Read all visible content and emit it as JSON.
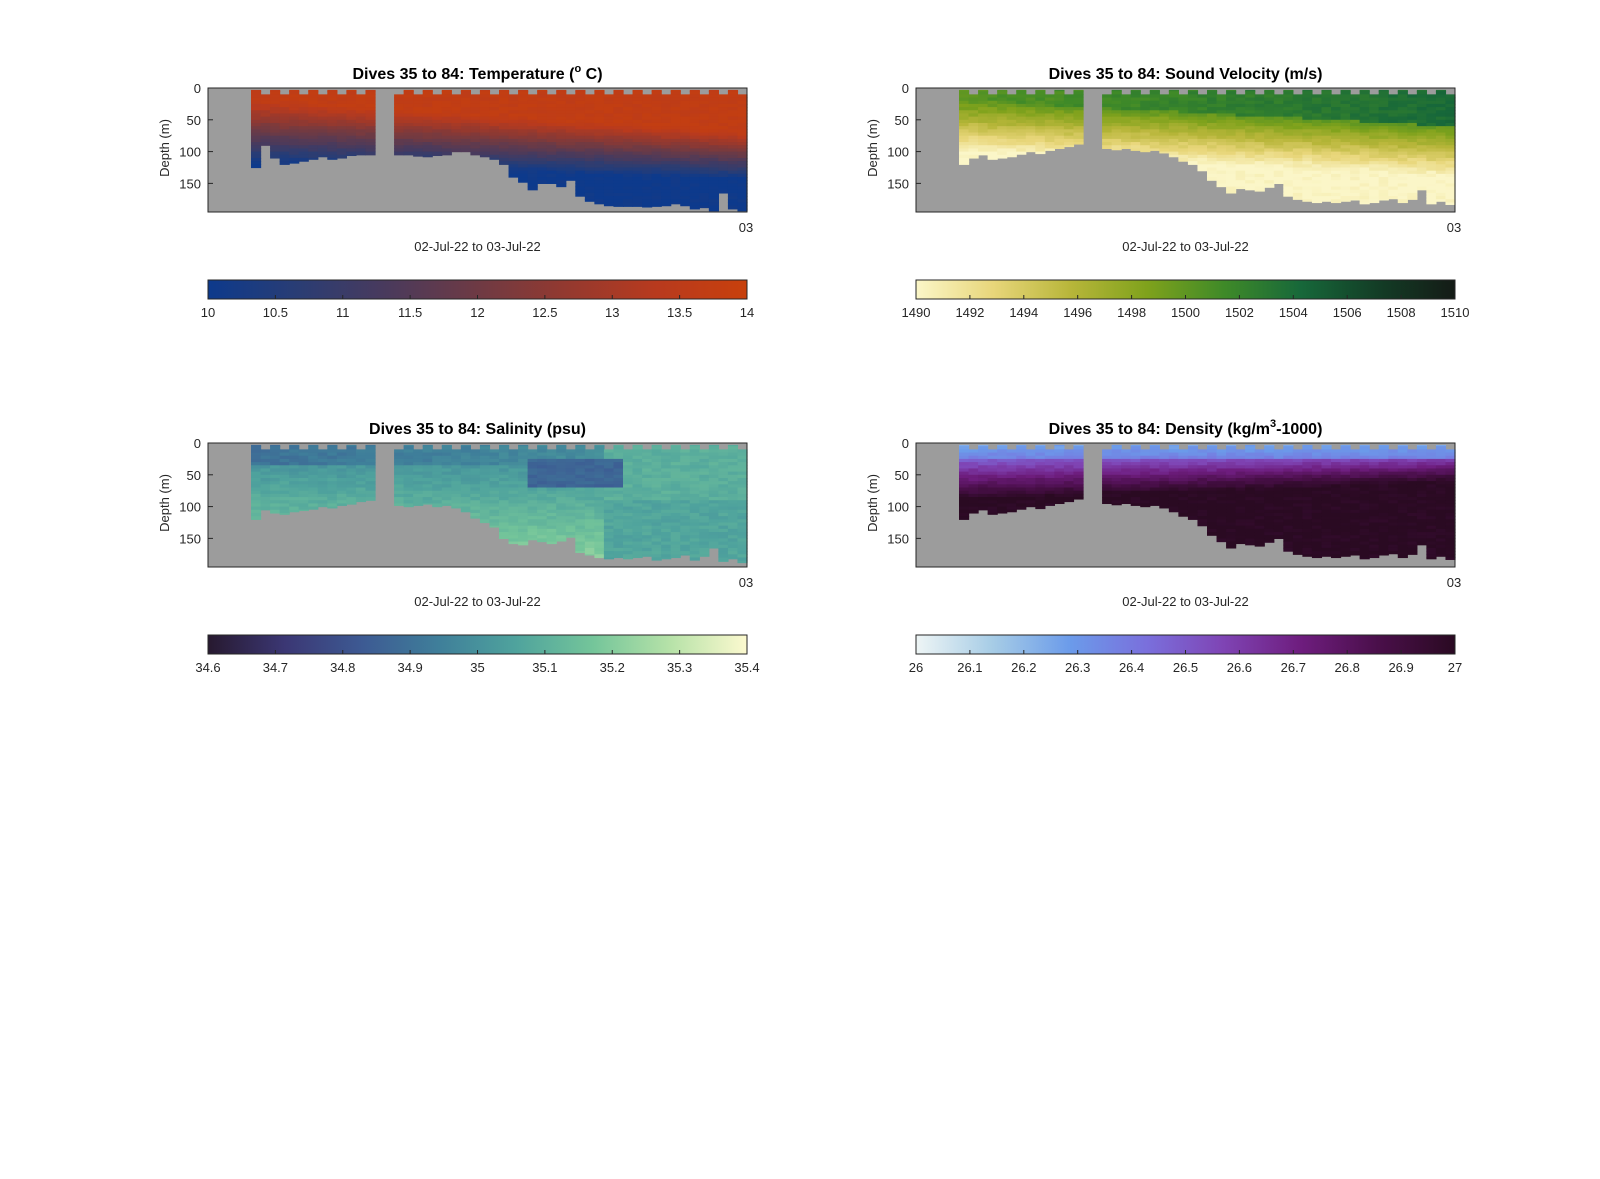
{
  "chart_data": [
    {
      "type": "heatmap",
      "title": "Dives 35 to 84: Temperature (",
      "title_sup": "o",
      "title_end": " C)",
      "xlabel": "02-Jul-22 to 03-Jul-22",
      "ylabel": "Depth (m)",
      "y_ticks": [
        "0",
        "50",
        "100",
        "150"
      ],
      "x_ticks": [
        "03"
      ],
      "ylim": [
        0,
        195
      ],
      "colorbar": {
        "min": 10,
        "max": 14,
        "ticks": [
          "10",
          "10.5",
          "11",
          "11.5",
          "12",
          "12.5",
          "13",
          "13.5",
          "14"
        ],
        "colors": [
          "#0d3a8c",
          "#2a3d74",
          "#4a3a5c",
          "#6e3a44",
          "#94392f",
          "#b83a1e",
          "#c8400c"
        ]
      },
      "profile": "temperature",
      "depth_limit": [
        125,
        90,
        110,
        120,
        118,
        115,
        112,
        108,
        112,
        110,
        106,
        105,
        105,
        0,
        0,
        105,
        105,
        107,
        108,
        106,
        105,
        100,
        100,
        105,
        108,
        112,
        120,
        140,
        148,
        160,
        150,
        150,
        155,
        145,
        170,
        178,
        182,
        185,
        186,
        186,
        186,
        187,
        186,
        185,
        182,
        185,
        190,
        188,
        193,
        165,
        190,
        193
      ]
    },
    {
      "type": "heatmap",
      "title": "Dives 35 to 84: Sound Velocity (m/s)",
      "xlabel": "02-Jul-22 to 03-Jul-22",
      "ylabel": "Depth (m)",
      "y_ticks": [
        "0",
        "50",
        "100",
        "150"
      ],
      "x_ticks": [
        "03"
      ],
      "ylim": [
        0,
        195
      ],
      "colorbar": {
        "min": 1490,
        "max": 1510,
        "ticks": [
          "1490",
          "1492",
          "1494",
          "1496",
          "1498",
          "1500",
          "1502",
          "1504",
          "1506",
          "1508",
          "1510"
        ],
        "colors": [
          "#fbf6c8",
          "#e8d67a",
          "#b8b63a",
          "#7fa21c",
          "#3f8a28",
          "#17683a",
          "#133d26",
          "#141b16"
        ]
      },
      "profile": "sound_velocity",
      "depth_limit": [
        120,
        110,
        105,
        112,
        110,
        108,
        104,
        100,
        103,
        98,
        95,
        92,
        88,
        0,
        0,
        95,
        97,
        95,
        98,
        100,
        98,
        102,
        108,
        115,
        120,
        130,
        145,
        155,
        165,
        158,
        160,
        162,
        156,
        150,
        170,
        175,
        178,
        180,
        178,
        180,
        178,
        176,
        182,
        180,
        176,
        174,
        180,
        175,
        160,
        182,
        178,
        183
      ]
    },
    {
      "type": "heatmap",
      "title": "Dives 35 to 84: Salinity (psu)",
      "xlabel": "02-Jul-22 to 03-Jul-22",
      "ylabel": "Depth (m)",
      "y_ticks": [
        "0",
        "50",
        "100",
        "150"
      ],
      "x_ticks": [
        "03"
      ],
      "ylim": [
        0,
        195
      ],
      "colorbar": {
        "min": 34.6,
        "max": 35.4,
        "ticks": [
          "34.6",
          "34.7",
          "34.8",
          "34.9",
          "35",
          "35.1",
          "35.2",
          "35.3",
          "35.4"
        ],
        "colors": [
          "#27192f",
          "#3b3774",
          "#3d5a93",
          "#3f7f9a",
          "#4fa39d",
          "#74c59a",
          "#b6e2a8",
          "#fcf9cf"
        ]
      },
      "profile": "salinity",
      "depth_limit": [
        120,
        105,
        110,
        112,
        108,
        106,
        104,
        100,
        102,
        98,
        96,
        92,
        90,
        0,
        0,
        98,
        100,
        98,
        96,
        100,
        98,
        102,
        108,
        118,
        125,
        132,
        150,
        158,
        160,
        152,
        155,
        158,
        154,
        148,
        172,
        176,
        180,
        182,
        180,
        182,
        180,
        178,
        184,
        182,
        180,
        176,
        184,
        178,
        165,
        186,
        182,
        188
      ]
    },
    {
      "type": "heatmap",
      "title": "Dives 35 to 84: Density (kg/m",
      "title_sup": "3",
      "title_end": "-1000)",
      "xlabel": "02-Jul-22 to 03-Jul-22",
      "ylabel": "Depth (m)",
      "y_ticks": [
        "0",
        "50",
        "100",
        "150"
      ],
      "x_ticks": [
        "03"
      ],
      "ylim": [
        0,
        195
      ],
      "colorbar": {
        "min": 26,
        "max": 27,
        "ticks": [
          "26",
          "26.1",
          "26.2",
          "26.3",
          "26.4",
          "26.5",
          "26.6",
          "26.7",
          "26.8",
          "26.9",
          "27"
        ],
        "colors": [
          "#eef5f5",
          "#a6cce6",
          "#6b9bea",
          "#7a6fdc",
          "#7f44b4",
          "#6e1d7e",
          "#4a0f4a",
          "#2a0a22"
        ]
      },
      "profile": "density",
      "depth_limit": [
        120,
        110,
        105,
        112,
        110,
        108,
        104,
        100,
        103,
        98,
        95,
        92,
        88,
        0,
        0,
        95,
        97,
        95,
        98,
        100,
        98,
        102,
        108,
        115,
        120,
        130,
        145,
        155,
        165,
        158,
        160,
        162,
        156,
        150,
        170,
        175,
        178,
        180,
        178,
        180,
        178,
        176,
        182,
        180,
        176,
        174,
        180,
        175,
        160,
        182,
        178,
        183
      ]
    }
  ]
}
